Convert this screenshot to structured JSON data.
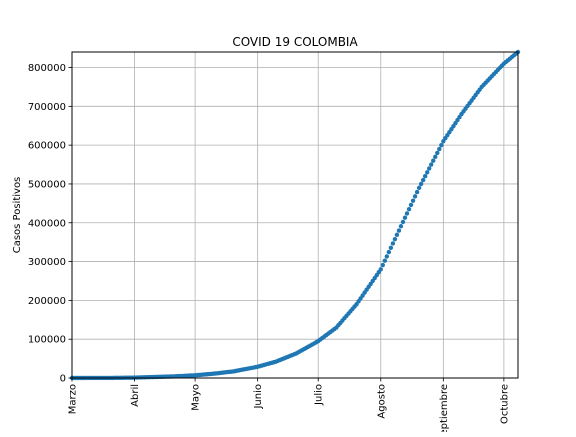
{
  "colors": {
    "background": "#ffffff",
    "series": "#1f77b4",
    "grid": "#b0b0b0",
    "axis": "#000000"
  },
  "chart_data": {
    "type": "scatter",
    "title": "COVID 19 COLOMBIA",
    "xlabel": "",
    "ylabel": "Casos Positivos",
    "x_axis": "date",
    "xlim": [
      "2020-03-01",
      "2020-10-08"
    ],
    "ylim": [
      0,
      840000
    ],
    "grid": true,
    "xticks": [
      {
        "date": "2020-03-01",
        "label": "Marzo"
      },
      {
        "date": "2020-04-01",
        "label": "Abril"
      },
      {
        "date": "2020-05-01",
        "label": "Mayo"
      },
      {
        "date": "2020-06-01",
        "label": "Junio"
      },
      {
        "date": "2020-07-01",
        "label": "Julio"
      },
      {
        "date": "2020-08-01",
        "label": "Agosto"
      },
      {
        "date": "2020-09-01",
        "label": "Septiembre"
      },
      {
        "date": "2020-10-01",
        "label": "Octubre"
      }
    ],
    "yticks": [
      0,
      100000,
      200000,
      300000,
      400000,
      500000,
      600000,
      700000,
      800000
    ],
    "ytick_labels": [
      "0",
      "100000",
      "200000",
      "300000",
      "400000",
      "500000",
      "600000",
      "700000",
      "800000"
    ],
    "series": [
      {
        "marker": "circle",
        "x": [
          "2020-03-01",
          "2020-03-10",
          "2020-03-20",
          "2020-04-01",
          "2020-04-10",
          "2020-04-20",
          "2020-05-01",
          "2020-05-10",
          "2020-05-20",
          "2020-06-01",
          "2020-06-10",
          "2020-06-20",
          "2020-07-01",
          "2020-07-10",
          "2020-07-20",
          "2020-08-01",
          "2020-08-10",
          "2020-08-20",
          "2020-09-01",
          "2020-09-10",
          "2020-09-20",
          "2020-10-01",
          "2020-10-08"
        ],
        "y": [
          0,
          50,
          200,
          1000,
          2500,
          4000,
          7000,
          11000,
          17000,
          29000,
          42000,
          63000,
          95000,
          130000,
          190000,
          280000,
          380000,
          490000,
          610000,
          680000,
          750000,
          810000,
          840000
        ]
      }
    ]
  }
}
